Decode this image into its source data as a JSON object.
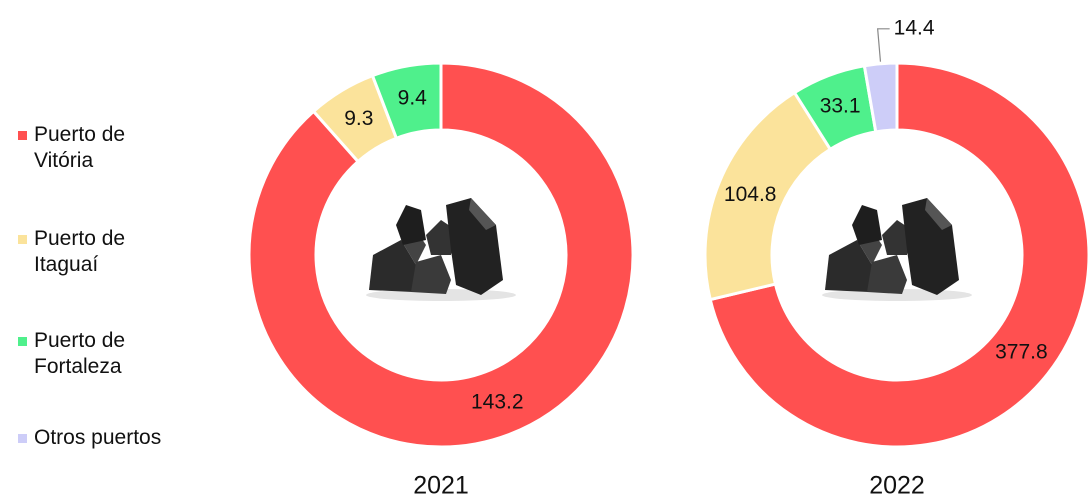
{
  "chart_data": [
    {
      "type": "donut",
      "title": "2021",
      "categories": [
        "Puerto de Vitória",
        "Puerto de Itaguaí",
        "Puerto de Fortaleza",
        "Otros puertos"
      ],
      "colors": [
        "#ff5050",
        "#fbe39b",
        "#4ff08c",
        "#cdcdf8"
      ],
      "values": [
        143.2,
        9.3,
        9.4,
        null
      ]
    },
    {
      "type": "donut",
      "title": "2022",
      "values": [
        377.8,
        104.8,
        33.1,
        14.4
      ]
    }
  ]
}
